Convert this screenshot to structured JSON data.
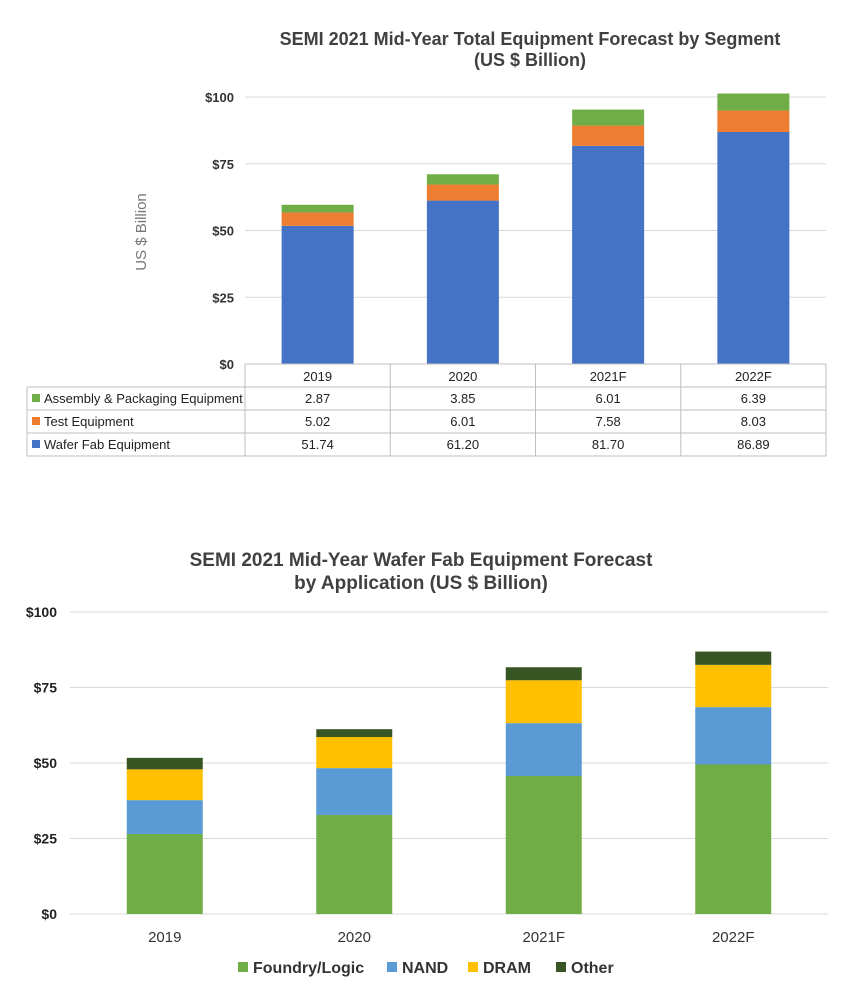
{
  "chart_data": [
    {
      "type": "bar",
      "stacked": true,
      "title": "SEMI 2021 Mid-Year Total Equipment Forecast by Segment",
      "subtitle": "(US $ Billion)",
      "ylabel": "US $ Billion",
      "ylim": [
        0,
        100
      ],
      "yticks": [
        "$0",
        "$25",
        "$50",
        "$75",
        "$100"
      ],
      "grid": true,
      "legend": "data table",
      "categories": [
        "2019",
        "2020",
        "2021F",
        "2022F"
      ],
      "series": [
        {
          "name": "Assembly & Packaging Equipment",
          "color": "#70ad47",
          "values": [
            2.87,
            3.85,
            6.01,
            6.39
          ],
          "labels": [
            "2.87",
            "3.85",
            "6.01",
            "6.39"
          ]
        },
        {
          "name": "Test Equipment",
          "color": "#ed7d31",
          "values": [
            5.02,
            6.01,
            7.58,
            8.03
          ],
          "labels": [
            "5.02",
            "6.01",
            "7.58",
            "8.03"
          ]
        },
        {
          "name": "Wafer Fab Equipment",
          "color": "#4472c4",
          "values": [
            51.74,
            61.2,
            81.7,
            86.89
          ],
          "labels": [
            "51.74",
            "61.20",
            "81.70",
            "86.89"
          ]
        }
      ]
    },
    {
      "type": "bar",
      "stacked": true,
      "title": "SEMI 2021 Mid-Year Wafer Fab Equipment Forecast",
      "subtitle": "by Application (US $ Billion)",
      "ylim": [
        0,
        100
      ],
      "yticks": [
        "$0",
        "$25",
        "$50",
        "$75",
        "$100"
      ],
      "grid": true,
      "legend": "bottom",
      "categories": [
        "2019",
        "2020",
        "2021F",
        "2022F"
      ],
      "series": [
        {
          "name": "Foundry/Logic",
          "color": "#70ad47",
          "values": [
            26.5,
            32.8,
            45.7,
            49.5
          ]
        },
        {
          "name": "NAND",
          "color": "#5b9bd5",
          "values": [
            11.2,
            15.5,
            17.5,
            19.0
          ]
        },
        {
          "name": "DRAM",
          "color": "#ffc000",
          "values": [
            10.2,
            10.3,
            14.2,
            14.0
          ]
        },
        {
          "name": "Other",
          "color": "#375623",
          "values": [
            3.8,
            2.6,
            4.3,
            4.4
          ]
        }
      ]
    }
  ]
}
